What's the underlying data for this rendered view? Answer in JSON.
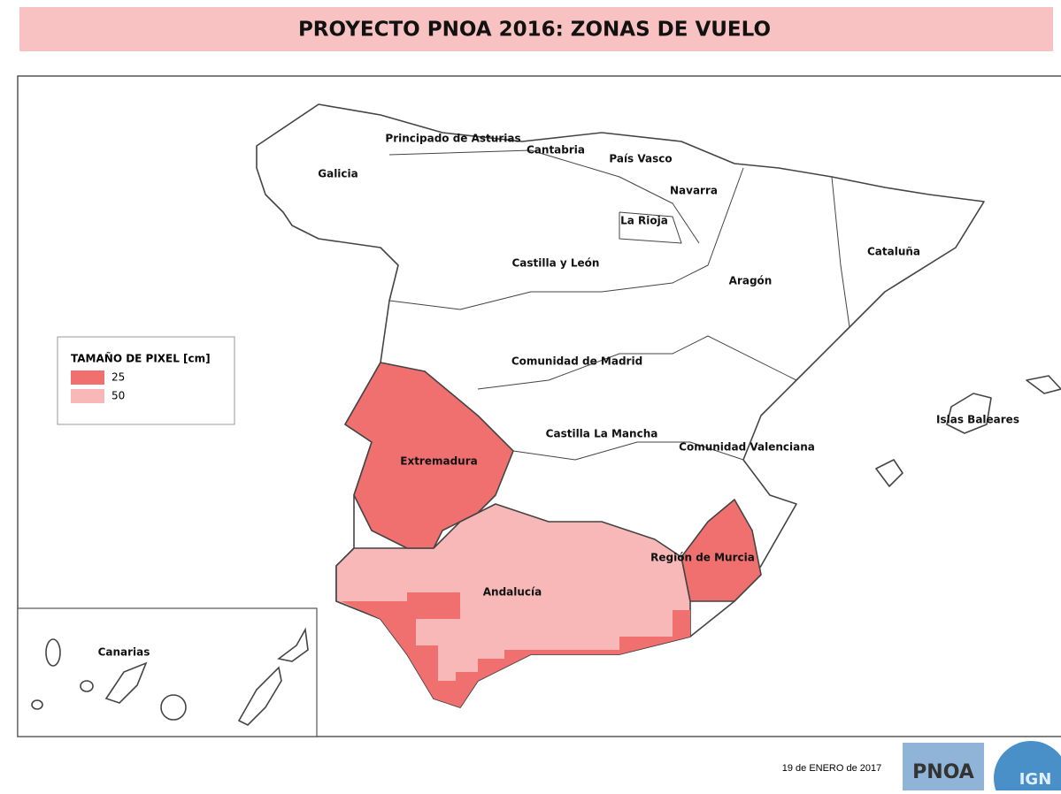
{
  "header": {
    "title": "PROYECTO PNOA 2016:  ZONAS DE VUELO"
  },
  "legend": {
    "title": "TAMAÑO DE PIXEL [cm]",
    "items": [
      {
        "label": "25",
        "color": "#f07070"
      },
      {
        "label": "50",
        "color": "#f8b8b8"
      }
    ]
  },
  "regions": [
    "Principado de Asturias",
    "Cantabria",
    "País Vasco",
    "Galicia",
    "Navarra",
    "La Rioja",
    "Castilla y León",
    "Cataluña",
    "Aragón",
    "Comunidad de Madrid",
    "Islas Baleares",
    "Castilla La Mancha",
    "Comunidad Valenciana",
    "Extremadura",
    "Región de Murcia",
    "Andalucía",
    "Canarias"
  ],
  "footer": {
    "date": "19 de ENERO de 2017",
    "logos": [
      "PNOA",
      "IGN"
    ]
  }
}
